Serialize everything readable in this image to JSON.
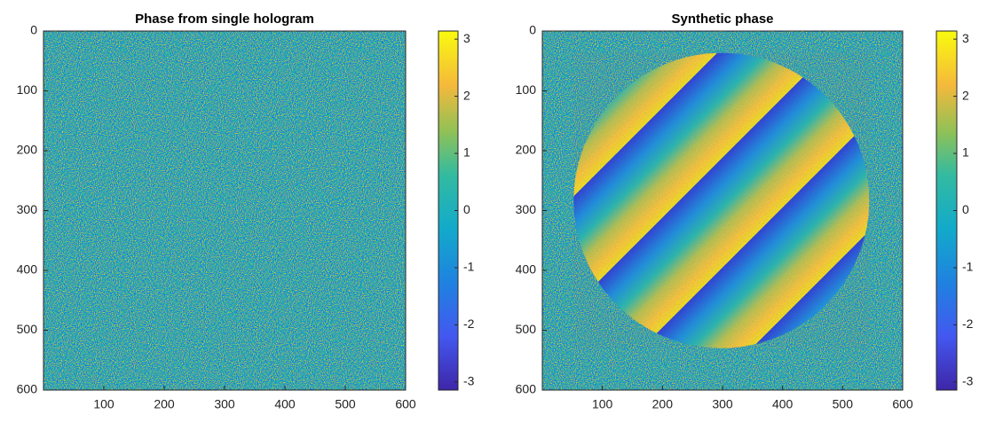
{
  "chart_data": [
    {
      "type": "image",
      "title": "Phase from single hologram",
      "xlim": [
        0,
        600
      ],
      "ylim": [
        0,
        600
      ],
      "y_reversed": true,
      "xticks": [
        100,
        200,
        300,
        400,
        500,
        600
      ],
      "yticks": [
        0,
        100,
        200,
        300,
        400,
        500,
        600
      ],
      "colorbar": {
        "clim": [
          -3.1416,
          3.1416
        ],
        "ticks": [
          -3,
          -2,
          -1,
          0,
          1,
          2,
          3
        ]
      },
      "colormap": "parula",
      "fringes": false
    },
    {
      "type": "image",
      "title": "Synthetic phase",
      "xlim": [
        0,
        600
      ],
      "ylim": [
        0,
        600
      ],
      "y_reversed": true,
      "xticks": [
        100,
        200,
        300,
        400,
        500,
        600
      ],
      "yticks": [
        0,
        100,
        200,
        300,
        400,
        500,
        600
      ],
      "colorbar": {
        "clim": [
          -3.1416,
          3.1416
        ],
        "ticks": [
          -3,
          -2,
          -1,
          0,
          1,
          2,
          3
        ]
      },
      "colormap": "parula",
      "fringes": true
    }
  ]
}
